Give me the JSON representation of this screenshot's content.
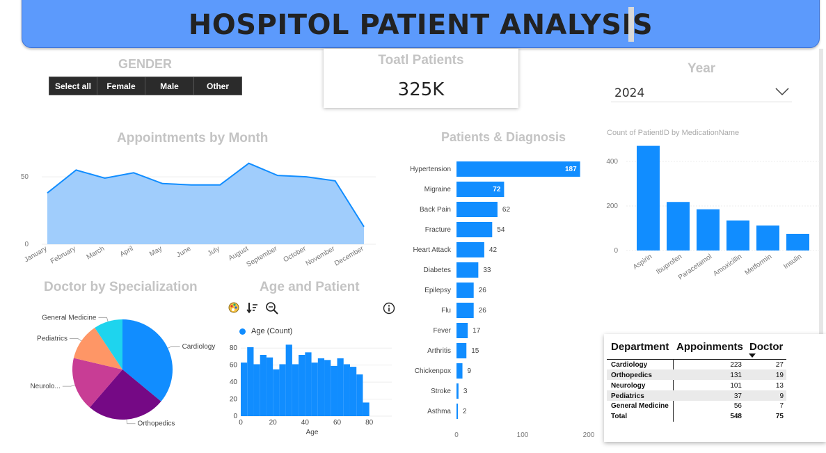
{
  "header": {
    "title": "HOSPITOL PATIENT ANALYSIS"
  },
  "gender": {
    "title": "GENDER",
    "options": [
      "Select all",
      "Female",
      "Male",
      "Other"
    ]
  },
  "kpi": {
    "title": "Toatl Patients",
    "value": "325K"
  },
  "year": {
    "title": "Year",
    "selected": "2024"
  },
  "colors": {
    "accent": "#118dff",
    "banner": "#5c9afc",
    "area_fill": "#a0cdfc",
    "area_line": "#118dff"
  },
  "appointments": {
    "title": "Appointments by Month",
    "chart_data": {
      "type": "area",
      "categories": [
        "January",
        "February",
        "March",
        "April",
        "May",
        "June",
        "July",
        "August",
        "September",
        "October",
        "November",
        "December"
      ],
      "values": [
        38,
        55,
        49,
        53,
        45,
        44,
        44,
        60,
        51,
        50,
        47,
        13
      ],
      "y_ticks": [
        "0",
        "50"
      ],
      "ylim": [
        0,
        65
      ],
      "grid": true
    }
  },
  "diagnosis": {
    "title": "Patients & Diagnosis",
    "chart_data": {
      "type": "bar",
      "orientation": "horizontal",
      "categories": [
        "Hypertension",
        "Migraine",
        "Back Pain",
        "Fracture",
        "Heart Attack",
        "Diabetes",
        "Epilepsy",
        "Flu",
        "Fever",
        "Arthritis",
        "Chickenpox",
        "Stroke",
        "Asthma"
      ],
      "values": [
        187,
        72,
        62,
        54,
        42,
        33,
        26,
        26,
        17,
        15,
        9,
        3,
        2
      ],
      "x_ticks": [
        "0",
        "100",
        "200"
      ],
      "xlim": [
        0,
        200
      ]
    }
  },
  "medication": {
    "title": "Count of PatientID by MedicationName",
    "chart_data": {
      "type": "bar",
      "categories": [
        "Aspirin",
        "Ibuprofen",
        "Paracetamol",
        "Amoxicillin",
        "Metformin",
        "Insulin"
      ],
      "values": [
        470,
        218,
        185,
        135,
        112,
        75
      ],
      "y_ticks": [
        "0",
        "200",
        "400"
      ],
      "ylim": [
        0,
        500
      ],
      "grid": true
    }
  },
  "specialization": {
    "title": "Doctor by Specialization",
    "chart_data": {
      "type": "pie",
      "labels": [
        "Cardiology",
        "Orthopedics",
        "Neurolo...",
        "Pediatrics",
        "General Medicine"
      ],
      "values": [
        27,
        19,
        13,
        9,
        7
      ],
      "colors": [
        "#118dff",
        "#750985",
        "#c83d95",
        "#fe9666",
        "#1ed4ee"
      ]
    }
  },
  "age": {
    "title": "Age and Patient",
    "legend": "Age (Count)",
    "xlabel": "Age",
    "chart_data": {
      "type": "bar",
      "x_start": 0,
      "bin_width": 4,
      "values": [
        63,
        81,
        61,
        72,
        69,
        55,
        61,
        84,
        61,
        72,
        75,
        63,
        68,
        66,
        59,
        68,
        61,
        58,
        49,
        16
      ],
      "x_ticks": [
        "0",
        "20",
        "40",
        "60",
        "80"
      ],
      "y_ticks": [
        "0",
        "20",
        "40",
        "60",
        "80"
      ],
      "xlim": [
        0,
        94
      ],
      "ylim": [
        0,
        90
      ]
    },
    "toolbar_icons": [
      "palette-icon",
      "sort-icon",
      "zoom-icon",
      "info-icon"
    ]
  },
  "department_table": {
    "headers": [
      "Department",
      "Appoinments",
      "Doctor"
    ],
    "rows": [
      [
        "Cardiology",
        "223",
        "27"
      ],
      [
        "Orthopedics",
        "131",
        "19"
      ],
      [
        "Neurology",
        "101",
        "13"
      ],
      [
        "Pediatrics",
        "37",
        "9"
      ],
      [
        "General Medicine",
        "56",
        "7"
      ]
    ],
    "total": [
      "Total",
      "548",
      "75"
    ]
  }
}
